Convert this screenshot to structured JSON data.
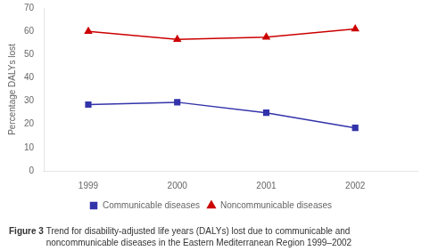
{
  "chart_data": {
    "type": "line",
    "y_label": "Percentage DALYs lost",
    "x": [
      1999,
      2000,
      2001,
      2002
    ],
    "series": [
      {
        "name": "Communicable diseases",
        "color": "#3333aa",
        "marker": "square",
        "values": [
          28.5,
          29.5,
          25.0,
          18.5
        ]
      },
      {
        "name": "Noncommunicable diseases",
        "color": "#cc0000",
        "marker": "triangle",
        "values": [
          60.0,
          56.5,
          57.5,
          61.0
        ]
      }
    ],
    "xlim": [
      1998.5,
      2002.7
    ],
    "xticks": [
      1999,
      2000,
      2001,
      2002
    ],
    "ylim": [
      0,
      70
    ],
    "yticks": [
      0,
      10,
      20,
      30,
      40,
      50,
      60,
      70
    ],
    "grid": false,
    "legend": "bottom",
    "annotations": [
      "Figure 3",
      "Trend for disability-adjusted life years (DALYs) lost due to communicable and\nnoncommunicable diseases in the Eastern Mediterranean Region 1999–2002"
    ]
  }
}
